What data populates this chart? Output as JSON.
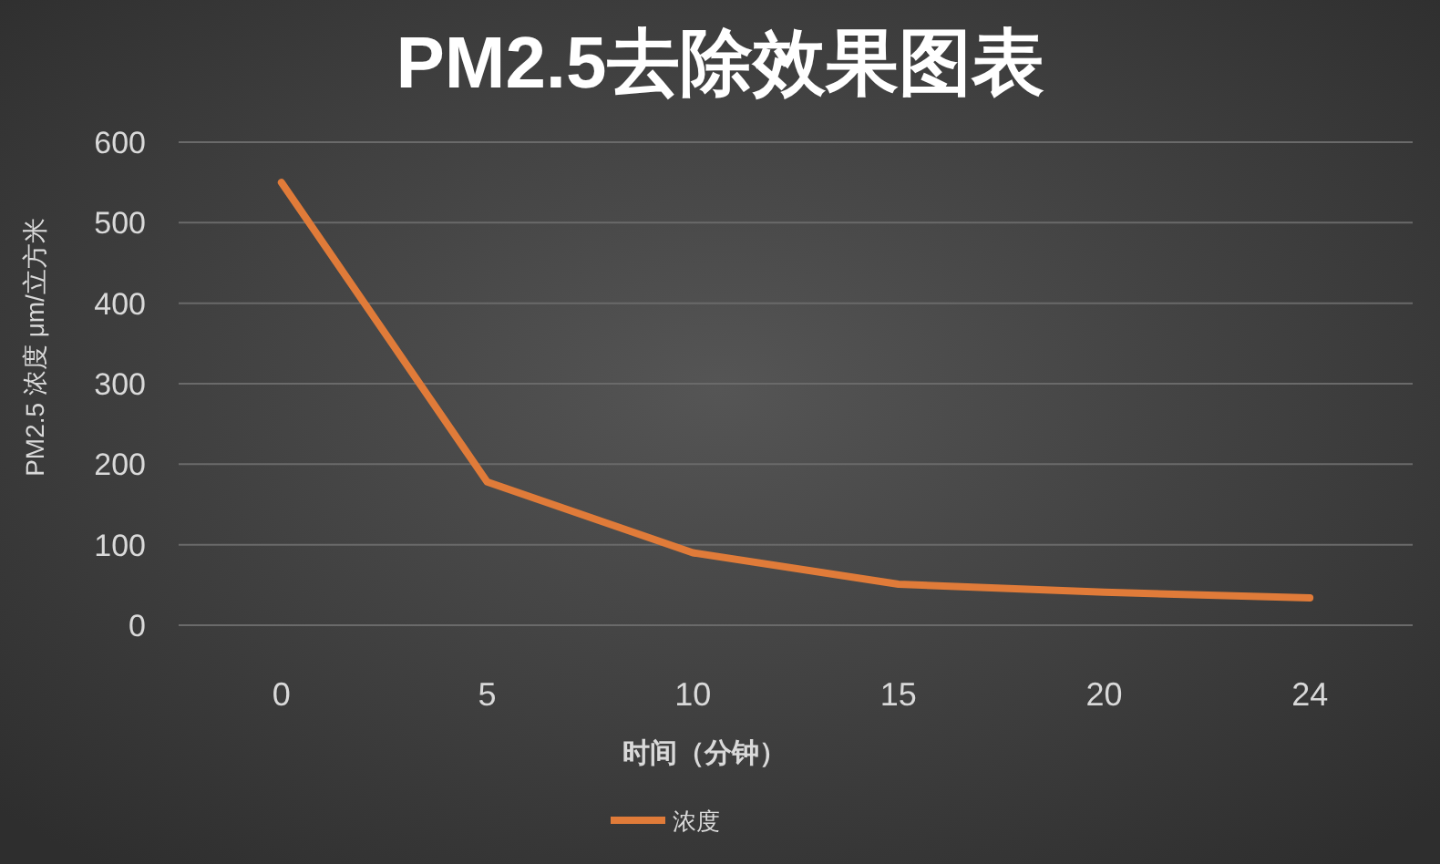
{
  "chart_data": {
    "type": "line",
    "title": "PM2.5去除效果图表",
    "xlabel": "时间（分钟）",
    "ylabel": "PM2.5 浓度 μm/立方米",
    "categories": [
      "0",
      "5",
      "10",
      "15",
      "20",
      "24"
    ],
    "series": [
      {
        "name": "浓度",
        "color": "#e07b39",
        "values": [
          550,
          178,
          90,
          51,
          41,
          34
        ]
      }
    ],
    "ylim": [
      0,
      600
    ],
    "yticks": [
      0,
      100,
      200,
      300,
      400,
      500,
      600
    ],
    "grid": "y",
    "legend": "bottom",
    "marker": "none",
    "line_style": "solid"
  }
}
